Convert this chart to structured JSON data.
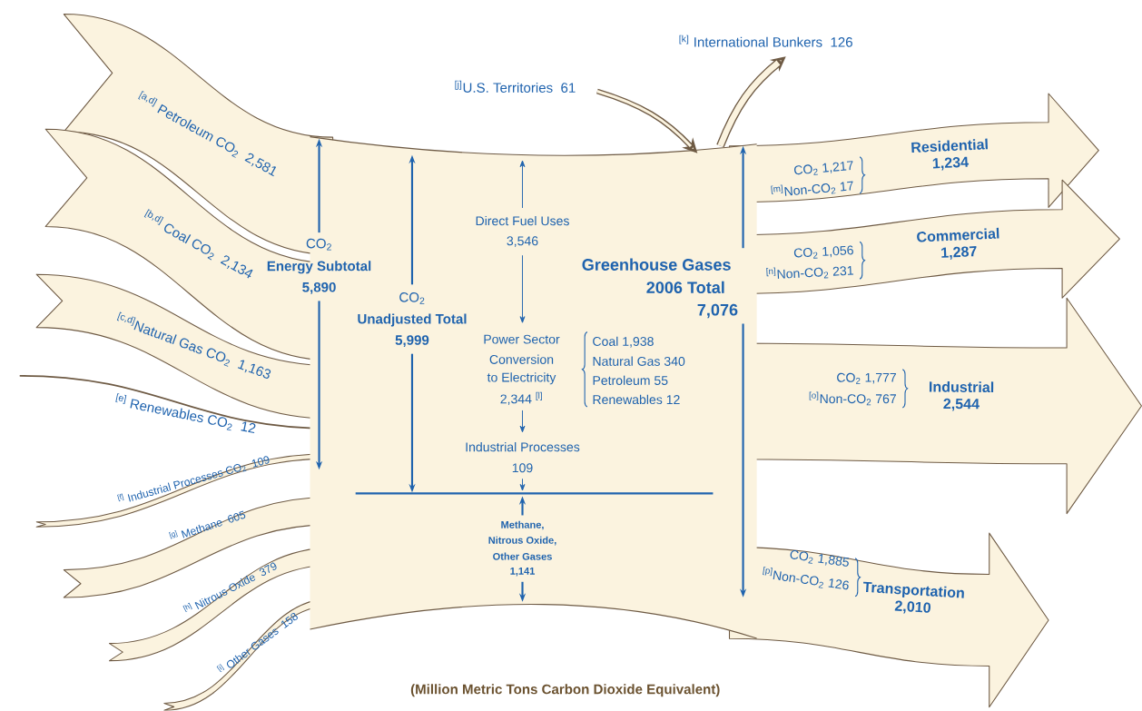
{
  "chart_data": {
    "type": "other",
    "categories": [
      "$^{[a,d]}$ Petroleum CO$_{2}$",
      "$^{[b,d]}$ Coal CO$_{2}$",
      "$^{[c,d]}$Natural Gas CO$_{2}$",
      "$^{[e]}$ Renewables CO$_{2}$",
      "$^{[f]}$ Industrial Processes CO$_{2}$",
      "$^{[g]}$ Methane",
      "$^{[h]}$ Nitrous Oxide",
      "$^{[i]}$ Other Gases",
      "$^{[j]}$U.S. Territories",
      "$^{[k]}$ International Bunkers",
      "Residential",
      "Commercial",
      "Industrial",
      "Transportation"
    ],
    "values": [
      2581,
      2134,
      1163,
      12,
      109,
      605,
      379,
      158,
      61,
      126,
      1234,
      1287,
      2544,
      2010
    ],
    "value_labels": [
      "2,581",
      "2,134",
      "1,163",
      "12",
      "109",
      "605",
      "379",
      "158",
      "61",
      "126",
      "1,234",
      "1,287",
      "2,544",
      "2,010"
    ],
    "color": "#fbf3df",
    "annotations": [
      "(Million Metric Tons Carbon Dioxide Equivalent)",
      "CO$_{2}$",
      "Energy Subtotal",
      "5,890",
      "CO$_{2}$",
      "Unadjusted Total",
      "5,999",
      "Direct Fuel Uses",
      "3,546",
      "Power Sector",
      "Conversion",
      "to Electricity",
      "2,344 $^{[l]}$",
      "Coal 1,938",
      "Natural Gas 340",
      "Petroleum 55",
      "Renewables 12",
      "Industrial Processes",
      "109",
      "Methane,",
      "Nitrous Oxide,",
      "Other Gases",
      "1,141",
      "Greenhouse Gases",
      "2006 Total",
      "7,076",
      "CO$_{2}$ 1,217",
      "$^{[m]}$Non-CO$_{2}$ 17",
      "CO$_{2}$ 1,056",
      "$^{[n]}$Non-CO$_{2}$ 231",
      "CO$_{2}$ 1,777",
      "$^{[o]}$Non-CO$_{2}$ 767",
      "CO$_{2}$ 1,885",
      "$^{[p]}$Non-CO$_{2}$ 126"
    ]
  }
}
